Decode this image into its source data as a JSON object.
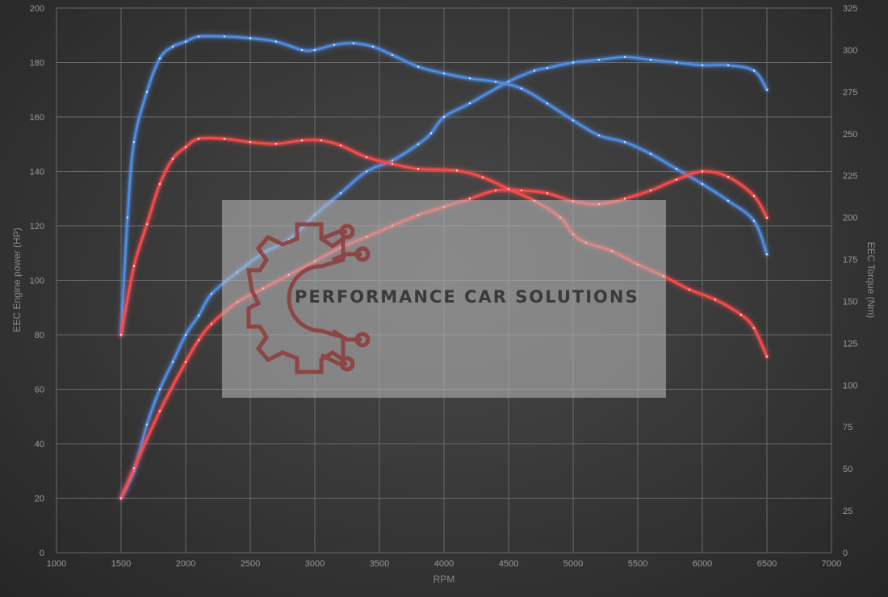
{
  "chart_data": {
    "type": "line",
    "xlabel": "RPM",
    "ylabel_left": "EEC Engine power (HP)",
    "ylabel_right": "EEC Torque (Nm)",
    "xlim": [
      1000,
      7000
    ],
    "ylim_left": [
      0,
      200
    ],
    "ylim_right": [
      0,
      325
    ],
    "x_ticks": [
      1000,
      1500,
      2000,
      2500,
      3000,
      3500,
      4000,
      4500,
      5000,
      5500,
      6000,
      6500,
      7000
    ],
    "y_ticks_left": [
      0,
      20,
      40,
      60,
      80,
      100,
      120,
      140,
      160,
      180,
      200
    ],
    "y_ticks_right": [
      0,
      25,
      50,
      75,
      100,
      125,
      150,
      175,
      200,
      225,
      250,
      275,
      300,
      325
    ],
    "grid": true,
    "series": [
      {
        "axis": "left",
        "color": "#4f8fe8",
        "points": [
          [
            1500,
            20
          ],
          [
            1600,
            30
          ],
          [
            1700,
            47
          ],
          [
            1800,
            60
          ],
          [
            1900,
            70
          ],
          [
            2000,
            80
          ],
          [
            2100,
            87
          ],
          [
            2200,
            95
          ],
          [
            2400,
            103
          ],
          [
            2600,
            110
          ],
          [
            2800,
            115
          ],
          [
            3000,
            124
          ],
          [
            3200,
            132
          ],
          [
            3400,
            140
          ],
          [
            3600,
            144
          ],
          [
            3800,
            150
          ],
          [
            3900,
            154
          ],
          [
            4000,
            160
          ],
          [
            4200,
            165
          ],
          [
            4500,
            173
          ],
          [
            4700,
            177
          ],
          [
            4800,
            178
          ],
          [
            5000,
            180
          ],
          [
            5200,
            181
          ],
          [
            5400,
            182
          ],
          [
            5600,
            181
          ],
          [
            5800,
            180
          ],
          [
            6000,
            179
          ],
          [
            6200,
            179
          ],
          [
            6400,
            177
          ],
          [
            6500,
            170
          ]
        ]
      },
      {
        "axis": "right",
        "color": "#4f8fe8",
        "points": [
          [
            1500,
            130
          ],
          [
            1550,
            200
          ],
          [
            1600,
            245
          ],
          [
            1700,
            275
          ],
          [
            1800,
            295
          ],
          [
            1900,
            302
          ],
          [
            2000,
            305
          ],
          [
            2100,
            308
          ],
          [
            2300,
            308
          ],
          [
            2500,
            307
          ],
          [
            2700,
            305
          ],
          [
            2900,
            300
          ],
          [
            3000,
            300
          ],
          [
            3150,
            303
          ],
          [
            3300,
            304
          ],
          [
            3450,
            302
          ],
          [
            3600,
            297
          ],
          [
            3800,
            290
          ],
          [
            4000,
            286
          ],
          [
            4200,
            283
          ],
          [
            4400,
            281
          ],
          [
            4600,
            277
          ],
          [
            4800,
            268
          ],
          [
            5000,
            258
          ],
          [
            5200,
            249
          ],
          [
            5400,
            245
          ],
          [
            5600,
            238
          ],
          [
            5800,
            229
          ],
          [
            6000,
            220
          ],
          [
            6200,
            210
          ],
          [
            6400,
            198
          ],
          [
            6500,
            178
          ]
        ]
      },
      {
        "axis": "left",
        "color": "#ff4a4a",
        "points": [
          [
            1500,
            20
          ],
          [
            1600,
            31
          ],
          [
            1800,
            52
          ],
          [
            2000,
            70
          ],
          [
            2100,
            78
          ],
          [
            2200,
            84
          ],
          [
            2400,
            92
          ],
          [
            2600,
            97
          ],
          [
            2800,
            102
          ],
          [
            3000,
            107
          ],
          [
            3200,
            112
          ],
          [
            3400,
            116
          ],
          [
            3600,
            120
          ],
          [
            3800,
            124
          ],
          [
            4000,
            127
          ],
          [
            4200,
            130
          ],
          [
            4400,
            133
          ],
          [
            4600,
            133
          ],
          [
            4800,
            132
          ],
          [
            5000,
            129
          ],
          [
            5200,
            128
          ],
          [
            5400,
            130
          ],
          [
            5600,
            133
          ],
          [
            5800,
            137
          ],
          [
            6000,
            140
          ],
          [
            6200,
            138
          ],
          [
            6400,
            131
          ],
          [
            6500,
            123
          ]
        ]
      },
      {
        "axis": "right",
        "color": "#ff4a4a",
        "points": [
          [
            1500,
            130
          ],
          [
            1600,
            171
          ],
          [
            1700,
            196
          ],
          [
            1800,
            220
          ],
          [
            1900,
            235
          ],
          [
            2000,
            242
          ],
          [
            2100,
            247
          ],
          [
            2300,
            247
          ],
          [
            2500,
            245
          ],
          [
            2700,
            244
          ],
          [
            2900,
            246
          ],
          [
            3050,
            246
          ],
          [
            3200,
            243
          ],
          [
            3400,
            236
          ],
          [
            3600,
            232
          ],
          [
            3800,
            229
          ],
          [
            4100,
            228
          ],
          [
            4300,
            224
          ],
          [
            4500,
            217
          ],
          [
            4700,
            210
          ],
          [
            4900,
            200
          ],
          [
            5000,
            190
          ],
          [
            5100,
            185
          ],
          [
            5300,
            180
          ],
          [
            5500,
            172
          ],
          [
            5700,
            165
          ],
          [
            5900,
            157
          ],
          [
            6100,
            151
          ],
          [
            6300,
            142
          ],
          [
            6400,
            134
          ],
          [
            6500,
            117
          ]
        ]
      }
    ]
  },
  "watermark": {
    "text": "PERFORMANCE CAR SOLUTIONS"
  }
}
